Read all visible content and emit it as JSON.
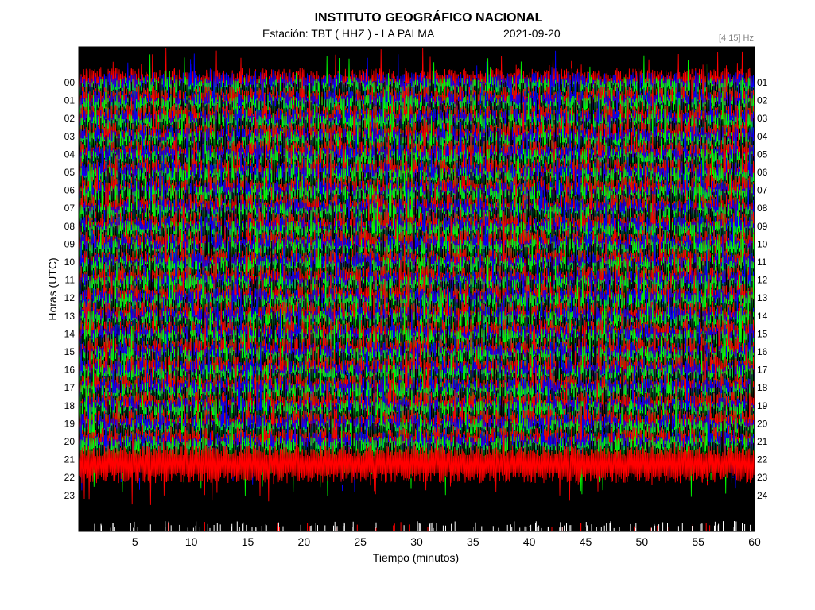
{
  "chart_data": {
    "type": "heatmap",
    "title": "INSTITUTO GEOGRÁFICO NACIONAL",
    "subtitle": {
      "station": "Estación:  TBT ( HHZ ) - LA PALMA",
      "date": "2021-09-20"
    },
    "frequency_band": "[4 15] Hz",
    "xlabel": "Tiempo (minutos)",
    "ylabel": "Horas (UTC)",
    "xlim": [
      0,
      60
    ],
    "x_ticks": [
      "5",
      "10",
      "15",
      "20",
      "25",
      "30",
      "35",
      "40",
      "45",
      "50",
      "55",
      "60"
    ],
    "y_ticks_left": [
      "00",
      "01",
      "02",
      "03",
      "04",
      "05",
      "06",
      "07",
      "08",
      "09",
      "10",
      "11",
      "12",
      "13",
      "14",
      "15",
      "16",
      "17",
      "18",
      "19",
      "20",
      "21",
      "22",
      "23"
    ],
    "y_ticks_right": [
      "01",
      "02",
      "03",
      "04",
      "05",
      "06",
      "07",
      "08",
      "09",
      "10",
      "11",
      "12",
      "13",
      "14",
      "15",
      "16",
      "17",
      "18",
      "19",
      "20",
      "21",
      "22",
      "23",
      "24"
    ],
    "trace_colors": [
      "#000000",
      "#ff0000",
      "#0000ff",
      "#00ff00"
    ],
    "background_color": "#000000",
    "recorded_hours": 21.6,
    "grid": false
  }
}
